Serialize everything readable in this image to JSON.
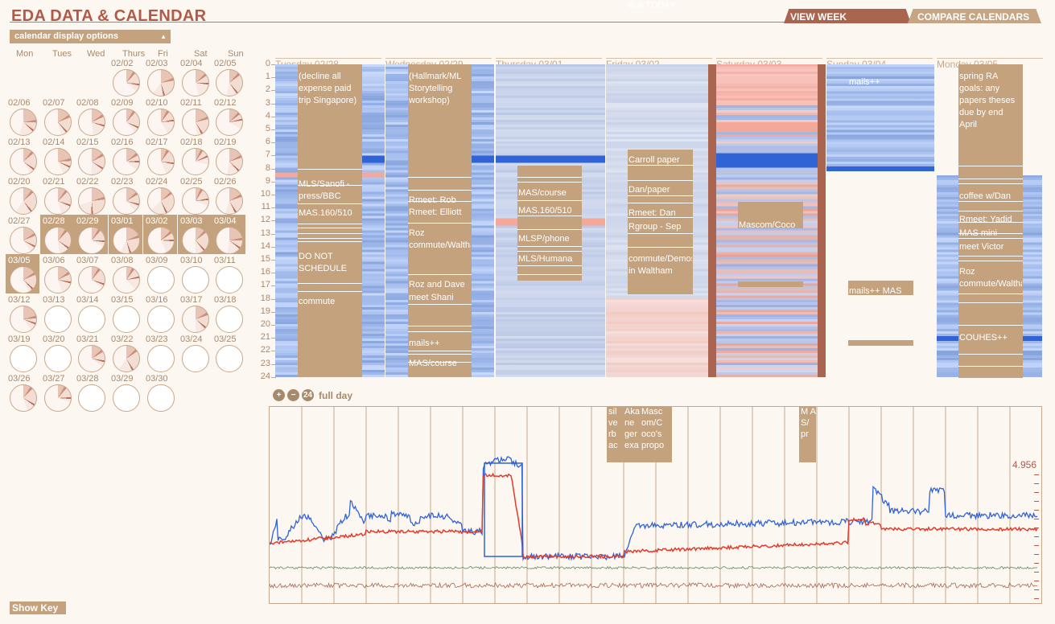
{
  "app": {
    "title": "EDA DATA & CALENDAR"
  },
  "tabs": {
    "view_week": "VIEW WEEK",
    "compare": "COMPARE CALENDARS"
  },
  "options": {
    "label": "calendar display options"
  },
  "mini_calendar": {
    "days_of_week": [
      "Mon",
      "Tues",
      "Wed",
      "Thurs",
      "Fri",
      "Sat",
      "Sun"
    ],
    "weeks": [
      [
        "",
        "",
        "",
        "02/02",
        "02/03",
        "02/04",
        "02/05"
      ],
      [
        "02/06",
        "02/07",
        "02/08",
        "02/09",
        "02/10",
        "02/11",
        "02/12"
      ],
      [
        "02/13",
        "02/14",
        "02/15",
        "02/16",
        "02/17",
        "02/18",
        "02/19"
      ],
      [
        "02/20",
        "02/21",
        "02/22",
        "02/23",
        "02/24",
        "02/25",
        "02/26"
      ],
      [
        "02/27",
        "02/28",
        "02/29",
        "03/01",
        "03/02",
        "03/03",
        "03/04"
      ],
      [
        "03/05",
        "03/06",
        "03/07",
        "03/08",
        "03/09",
        "03/10",
        "03/11"
      ],
      [
        "03/12",
        "03/13",
        "03/14",
        "03/15",
        "03/16",
        "03/17",
        "03/18"
      ],
      [
        "03/19",
        "03/20",
        "03/21",
        "03/22",
        "03/23",
        "03/24",
        "03/25"
      ],
      [
        "03/26",
        "03/27",
        "03/28",
        "03/29",
        "03/30",
        "",
        ""
      ]
    ],
    "selected_week": [
      "02/28",
      "02/29",
      "03/01",
      "03/02",
      "03/03",
      "03/04",
      "03/05"
    ]
  },
  "week": {
    "days": [
      "Tuesday 02/28",
      "Wednesday 02/29",
      "Thursday 03/01",
      "Friday 03/02",
      "Saturday 03/03",
      "Sunday 03/04",
      "Monday 03/05"
    ],
    "hours": [
      "0",
      "1",
      "2",
      "3",
      "4",
      "5",
      "6",
      "7",
      "8",
      "9",
      "10",
      "11",
      "12",
      "13",
      "14",
      "15",
      "16",
      "17",
      "18",
      "19",
      "20",
      "21",
      "22",
      "23",
      "24"
    ],
    "events": {
      "tue": [
        "(decline all expense paid trip Singapore)",
        "MLS/Sanofi - press/BBC",
        "MAS.160/510",
        "DO NOT SCHEDULE",
        "commute"
      ],
      "wed": [
        "(Hallmark/ML Storytelling workshop)",
        "Rmeet: Rob",
        "Rmeet: Elliott",
        "Roz commute/Waltham",
        "Roz and Dave",
        "meet Shani",
        "mails++",
        "MAS/course"
      ],
      "thu": [
        "MAS/course",
        "MAS.160/510",
        "MLSP/phone",
        "MLS/Humana"
      ],
      "fri": [
        "Carroll paper",
        "Dan/paper",
        "Rmeet: Dan",
        "Rgroup - Sep",
        "commute/Demos in Waltham",
        "due TODAY"
      ],
      "sat": [
        "Mascom/Coco"
      ],
      "sun": [
        "mails++",
        "mails++ MAS"
      ],
      "mon": [
        "spring RA goals: any papers theses due by end April",
        "coffee w/Dan",
        "Rmeet: Yadid",
        "MAS mini",
        "meet Victor",
        "Roz commute/Waltham",
        "COUHES++"
      ]
    }
  },
  "chart_controls": {
    "full_day": "full day",
    "zoom_value": "24"
  },
  "chart_labels": [
    "sil ve rb ac",
    "Aka ne ger exa",
    "Masc om/C oco's propo",
    "M A S/ pr"
  ],
  "chart_max": "4.956",
  "show_key": "Show Key",
  "colors": {
    "accent": "#b05a48",
    "tan": "#c4a27e",
    "blue": "#2f63d6",
    "red": "#e23b2b",
    "green": "#5c8c5c"
  }
}
